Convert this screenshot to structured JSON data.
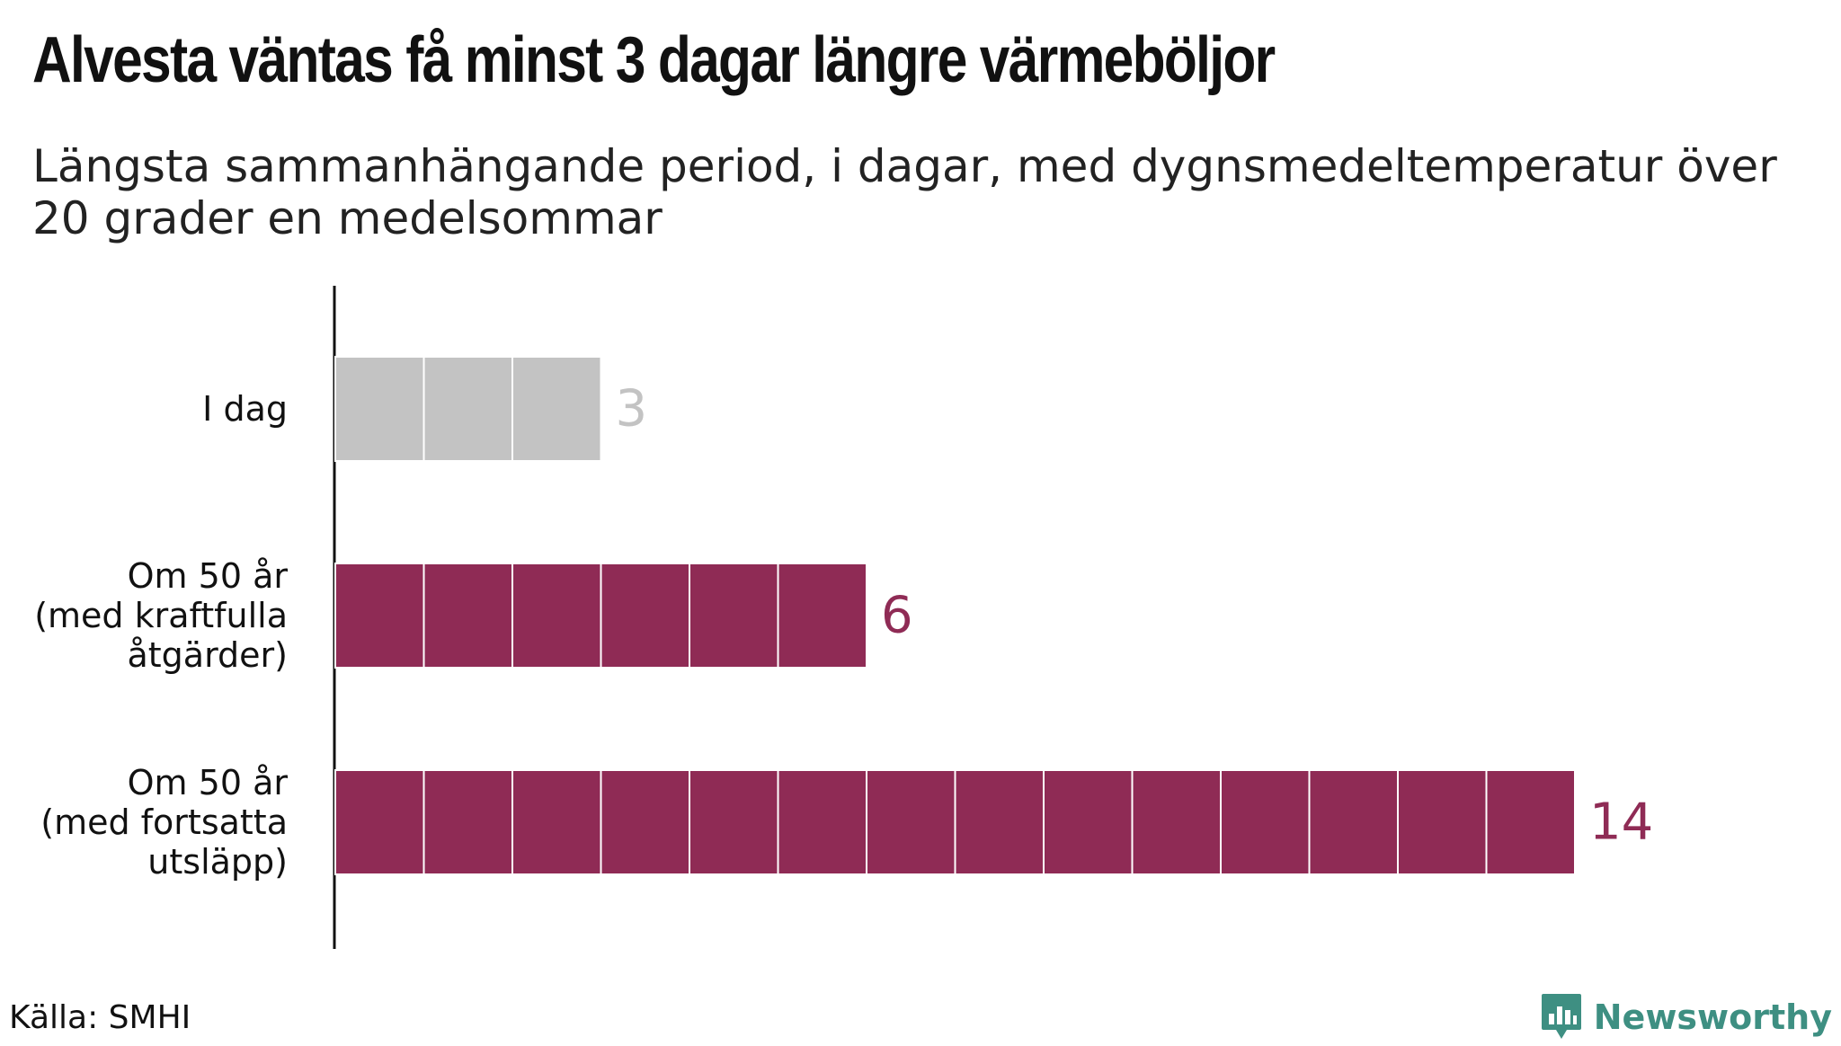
{
  "header": {
    "title": "Alvesta väntas få minst 3 dagar längre värmeböljor",
    "subtitle": "Längsta sammanhängande period, i dagar, med dygnsmedeltemperatur över 20 grader en medelsommar"
  },
  "footer": {
    "source": "Källa: SMHI",
    "brand": "Newsworthy",
    "brand_color": "#3e8f82",
    "brand_icon": "bar-chart-bubble-icon"
  },
  "chart_data": {
    "type": "bar",
    "orientation": "horizontal",
    "categories": [
      [
        "I dag"
      ],
      [
        "Om 50 år",
        "(med kraftfulla",
        "åtgärder)"
      ],
      [
        "Om 50 år",
        "(med fortsatta",
        "utsläpp)"
      ]
    ],
    "values": [
      3,
      6,
      14
    ],
    "value_labels": [
      "3",
      "6",
      "14"
    ],
    "bar_colors": [
      "#c3c3c3",
      "#8f2b55",
      "#8f2b55"
    ],
    "label_colors": [
      "#c3c3c3",
      "#8f2b55",
      "#8f2b55"
    ],
    "bars_split_into_unit_blocks": true,
    "xlim": [
      0,
      14
    ],
    "grid": false,
    "legend": "none"
  }
}
